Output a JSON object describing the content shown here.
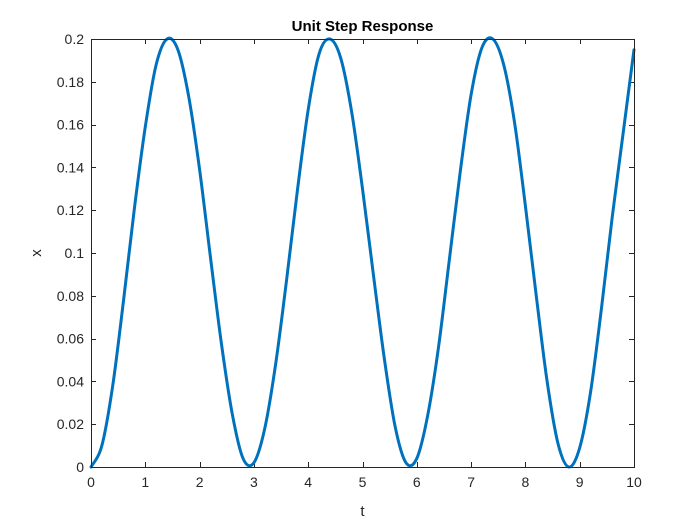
{
  "chart_data": {
    "type": "line",
    "title": "Unit Step Response",
    "xlabel": "t",
    "ylabel": "x",
    "xlim": [
      0,
      10
    ],
    "ylim": [
      0,
      0.2
    ],
    "xticks": [
      0,
      1,
      2,
      3,
      4,
      5,
      6,
      7,
      8,
      9,
      10
    ],
    "xtick_labels": [
      "0",
      "1",
      "2",
      "3",
      "4",
      "5",
      "6",
      "7",
      "8",
      "9",
      "10"
    ],
    "yticks": [
      0,
      0.02,
      0.04,
      0.06,
      0.08,
      0.1,
      0.12,
      0.14,
      0.16,
      0.18,
      0.2
    ],
    "ytick_labels": [
      "0",
      "0.02",
      "0.04",
      "0.06",
      "0.08",
      "0.1",
      "0.12",
      "0.14",
      "0.16",
      "0.18",
      "0.2"
    ],
    "grid": false,
    "box": true,
    "series": [
      {
        "color": "#0072BD",
        "x": [
          0,
          0.2,
          0.4,
          0.6,
          0.8,
          1.0,
          1.2,
          1.4,
          1.6,
          1.8,
          2.0,
          2.2,
          2.4,
          2.6,
          2.8,
          3.0,
          3.2,
          3.4,
          3.6,
          3.8,
          4.0,
          4.2,
          4.4,
          4.6,
          4.8,
          5.0,
          5.2,
          5.4,
          5.6,
          5.8,
          6.0,
          6.2,
          6.4,
          6.6,
          6.8,
          7.0,
          7.2,
          7.4,
          7.6,
          7.8,
          8.0,
          8.2,
          8.4,
          8.6,
          8.8,
          9.0,
          9.2,
          9.4,
          9.6,
          9.8,
          10.0
        ],
        "y": [
          0,
          0.01,
          0.038,
          0.078,
          0.121,
          0.159,
          0.188,
          0.2,
          0.195,
          0.173,
          0.139,
          0.098,
          0.058,
          0.025,
          0.004,
          0.002,
          0.018,
          0.048,
          0.087,
          0.129,
          0.167,
          0.193,
          0.2,
          0.191,
          0.166,
          0.13,
          0.09,
          0.051,
          0.019,
          0.002,
          0.004,
          0.024,
          0.056,
          0.097,
          0.138,
          0.174,
          0.196,
          0.2,
          0.188,
          0.161,
          0.122,
          0.08,
          0.04,
          0.011,
          0,
          0.009,
          0.035,
          0.074,
          0.117,
          0.156,
          0.195
        ]
      }
    ]
  }
}
